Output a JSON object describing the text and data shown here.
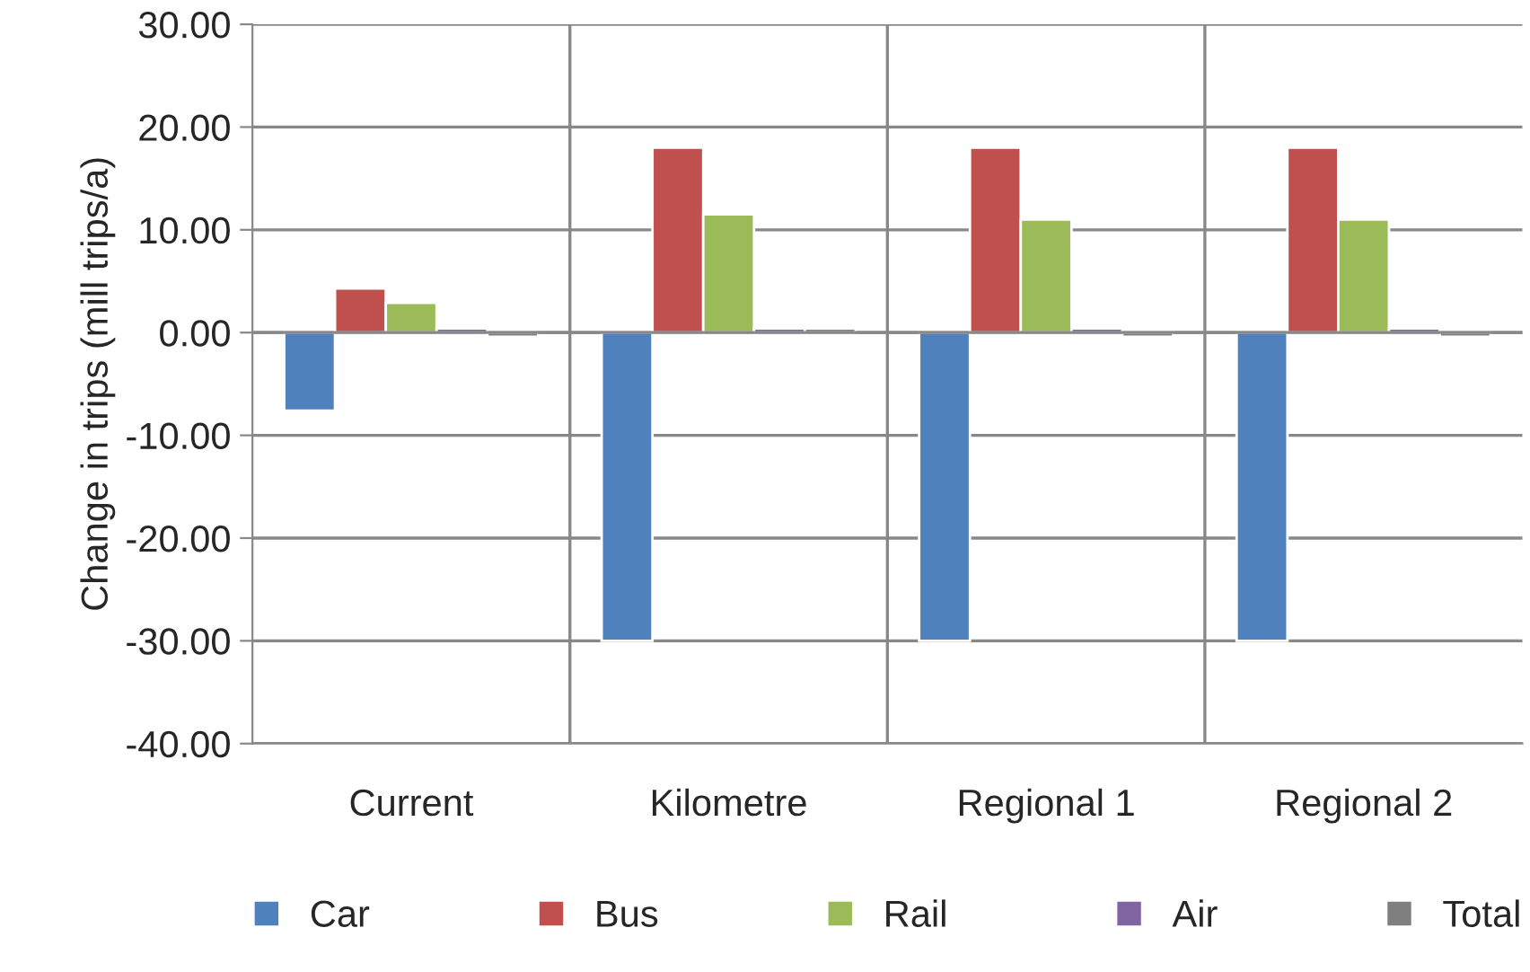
{
  "chart_data": {
    "type": "bar",
    "ylabel": "Change in trips (mill trips/a)",
    "categories": [
      "Current",
      "Kilometre",
      "Regional 1",
      "Regional 2"
    ],
    "series": [
      {
        "name": "Car",
        "color": "#4f81bd",
        "values": [
          -7.6,
          -30,
          -30,
          -30
        ]
      },
      {
        "name": "Bus",
        "color": "#c0504d",
        "values": [
          4.3,
          18,
          18,
          18
        ]
      },
      {
        "name": "Rail",
        "color": "#9bbb59",
        "values": [
          2.9,
          11.5,
          11,
          11
        ]
      },
      {
        "name": "Air",
        "color": "#8064a2",
        "values": [
          0.4,
          0.4,
          0.4,
          0.4
        ]
      },
      {
        "name": "Total",
        "color": "#7f7f7f",
        "values": [
          -0.4,
          0.4,
          -0.4,
          -0.4
        ]
      }
    ],
    "ylim": [
      -40,
      30
    ],
    "yticks": [
      {
        "value": -40,
        "label": "-40.00"
      },
      {
        "value": -30,
        "label": "-30.00"
      },
      {
        "value": -20,
        "label": "-20.00"
      },
      {
        "value": -10,
        "label": "-10.00"
      },
      {
        "value": 0,
        "label": "0.00"
      },
      {
        "value": 10,
        "label": "10.00"
      },
      {
        "value": 20,
        "label": "20.00"
      },
      {
        "value": 30,
        "label": "30.00"
      }
    ],
    "grid": true,
    "legend": "bottom"
  }
}
